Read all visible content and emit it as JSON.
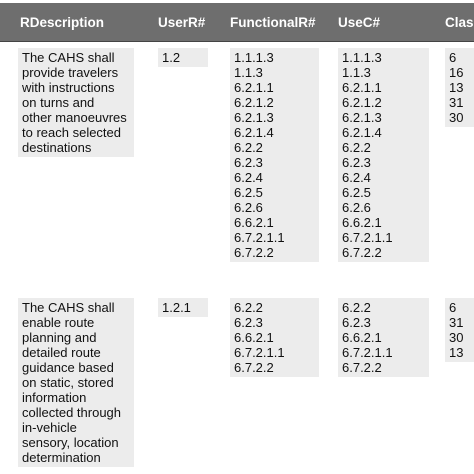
{
  "header": {
    "columns": [
      "RDescription",
      "UserR#",
      "FunctionalR#",
      "UseC#",
      "Class"
    ]
  },
  "rows": [
    {
      "description": [
        "The CAHS shall",
        "provide travelers",
        "with instructions",
        "on turns and",
        "other manoeuvres",
        "to reach selected",
        "destinations"
      ],
      "user_r": [
        "1.2"
      ],
      "functional_r": [
        "1.1.1.3",
        "1.1.3",
        "6.2.1.1",
        "6.2.1.2",
        "6.2.1.3",
        "6.2.1.4",
        "6.2.2",
        "6.2.3",
        "6.2.4",
        "6.2.5",
        "6.2.6",
        "6.6.2.1",
        "6.7.2.1.1",
        "6.7.2.2"
      ],
      "use_c": [
        "1.1.1.3",
        "1.1.3",
        "6.2.1.1",
        "6.2.1.2",
        "6.2.1.3",
        "6.2.1.4",
        "6.2.2",
        "6.2.3",
        "6.2.4",
        "6.2.5",
        "6.2.6",
        "6.6.2.1",
        "6.7.2.1.1",
        "6.7.2.2"
      ],
      "class": [
        "6",
        "16",
        "13",
        "31",
        "30"
      ]
    },
    {
      "description": [
        "The CAHS shall",
        "enable route",
        "planning and",
        "detailed route",
        "guidance based",
        "on static, stored",
        "information",
        "collected through",
        "in-vehicle",
        "sensory, location",
        "determination"
      ],
      "user_r": [
        "1.2.1"
      ],
      "functional_r": [
        "6.2.2",
        "6.2.3",
        "6.6.2.1",
        "6.7.2.1.1",
        "6.7.2.2"
      ],
      "use_c": [
        "6.2.2",
        "6.2.3",
        "6.6.2.1",
        "6.7.2.1.1",
        "6.7.2.2"
      ],
      "class": [
        "6",
        "31",
        "30",
        "13"
      ]
    }
  ]
}
